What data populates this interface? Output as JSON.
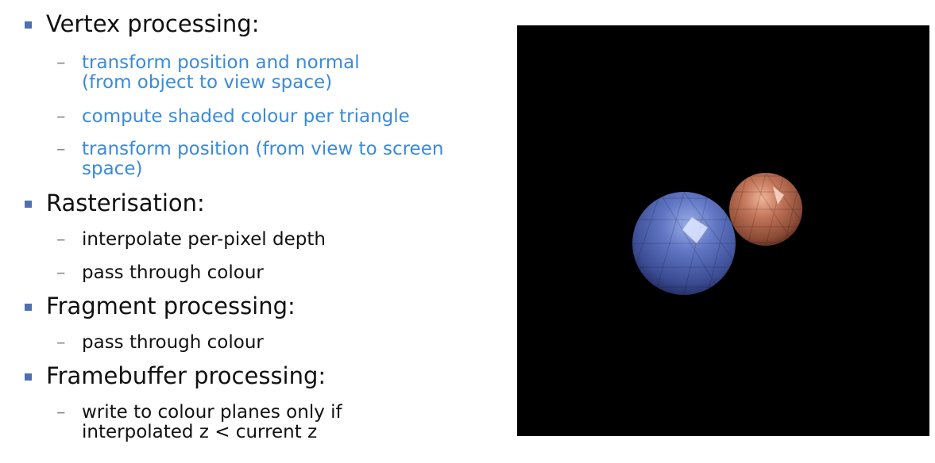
{
  "bullets": [
    {
      "label": "Vertex processing:",
      "subitems": [
        "transform position and normal\n(from object to view space)",
        "compute shaded colour per triangle",
        "transform position (from view to screen\nspace)"
      ]
    },
    {
      "label": "Rasterisation:",
      "subitems": [
        "interpolate per-pixel depth",
        "pass through colour"
      ]
    },
    {
      "label": "Fragment processing:",
      "subitems": [
        "pass through colour"
      ]
    },
    {
      "label": "Framebuffer processing:",
      "subitems": [
        "write to colour planes only if\ninterpolated z < current z"
      ]
    }
  ],
  "dash_glyph": "–",
  "colors": {
    "bullet_square": "#4f6fb1",
    "sub_blue": "#3a8ad9",
    "text": "#111111",
    "render_background": "#000000",
    "sphere_blue": "#5a6fbf",
    "sphere_copper": "#c87860"
  }
}
